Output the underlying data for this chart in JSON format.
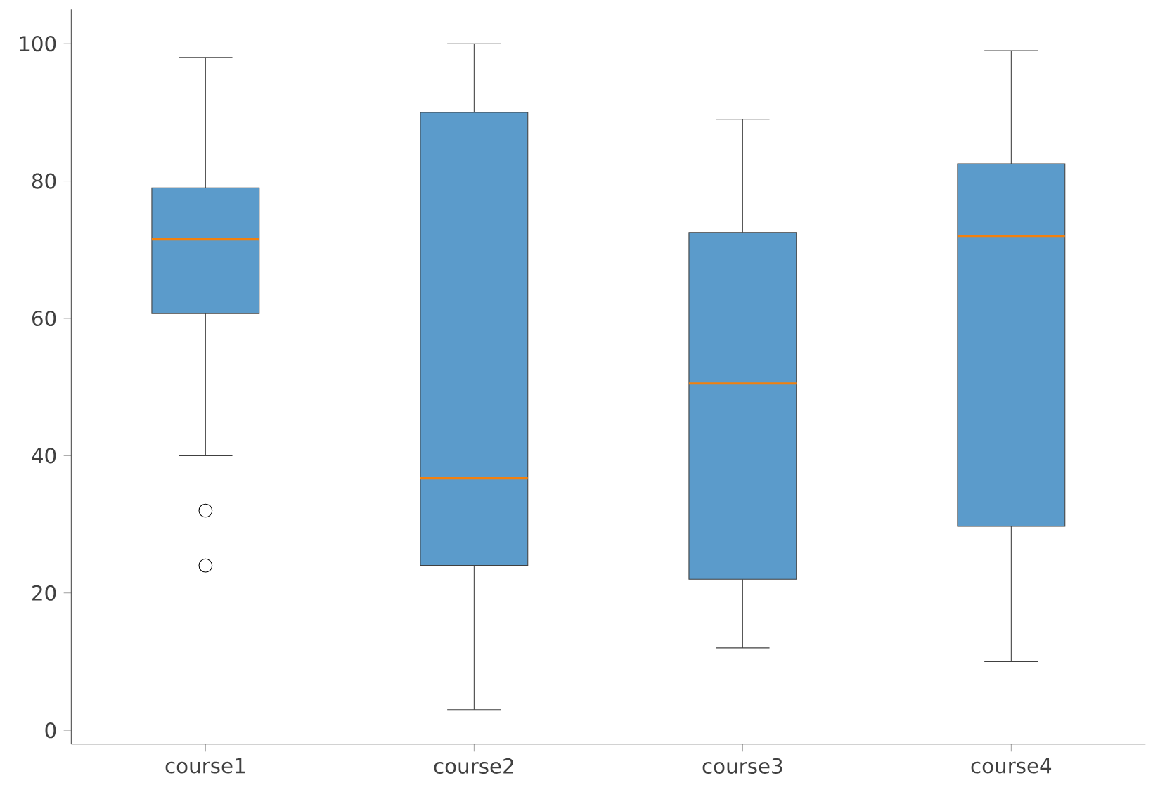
{
  "chart_data": {
    "type": "box",
    "categories": [
      "course1",
      "course2",
      "course3",
      "course4"
    ],
    "boxes": [
      {
        "low": 40,
        "q1": 60.7,
        "median": 71.5,
        "q3": 79,
        "high": 98,
        "outliers": [
          32,
          24
        ]
      },
      {
        "low": 3,
        "q1": 24,
        "median": 36.7,
        "q3": 90,
        "high": 100
      },
      {
        "low": 12,
        "q1": 22,
        "median": 50.5,
        "q3": 72.5,
        "high": 89
      },
      {
        "low": 10,
        "q1": 29.7,
        "median": 72,
        "q3": 82.5,
        "high": 99
      }
    ],
    "color": "#5b9bcb",
    "ylim": [
      -2,
      105
    ],
    "yticks": [
      0,
      20,
      40,
      60,
      80,
      100
    ],
    "grid": false,
    "marker": "circle"
  }
}
